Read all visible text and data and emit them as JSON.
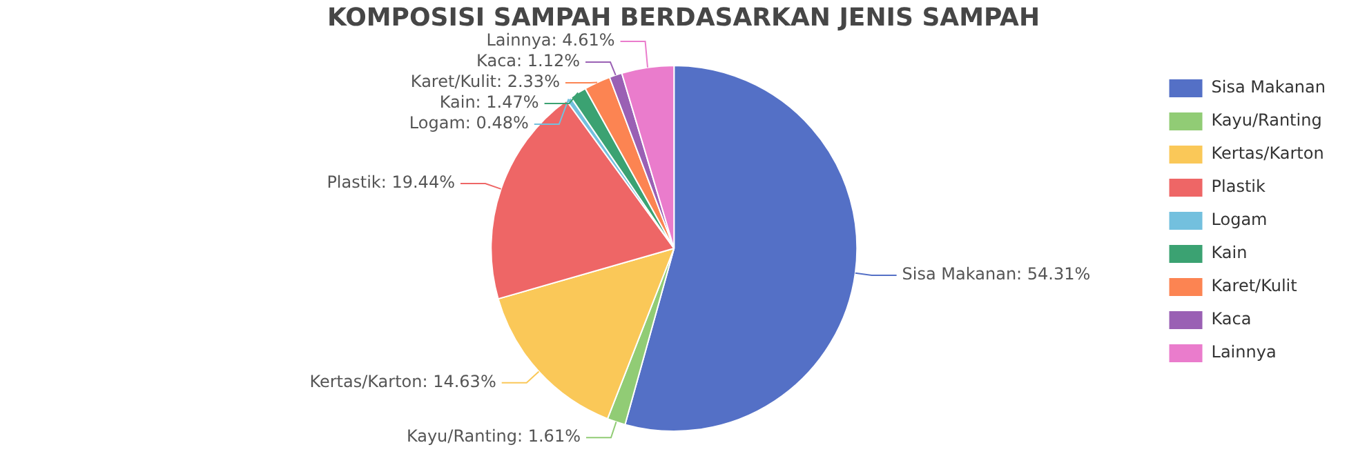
{
  "chart_data": {
    "type": "pie",
    "title": "KOMPOSISI SAMPAH BERDASARKAN JENIS SAMPAH",
    "categories": [
      "Sisa Makanan",
      "Kayu/Ranting",
      "Kertas/Karton",
      "Plastik",
      "Logam",
      "Kain",
      "Karet/Kulit",
      "Kaca",
      "Lainnya"
    ],
    "values": [
      54.31,
      1.61,
      14.63,
      19.44,
      0.48,
      1.47,
      2.33,
      1.12,
      4.61
    ],
    "value_labels": [
      "Sisa Makanan: 54.31%",
      "Kayu/Ranting: 1.61%",
      "Kertas/Karton: 14.63%",
      "Plastik: 19.44%",
      "Logam: 0.48%",
      "Kain: 1.47%",
      "Karet/Kulit: 2.33%",
      "Kaca: 1.12%",
      "Lainnya: 4.61%"
    ],
    "colors": [
      "#5470c6",
      "#91cc75",
      "#fac858",
      "#ee6666",
      "#73c0de",
      "#3ba272",
      "#fc8452",
      "#9a60b4",
      "#ea7ccc"
    ],
    "legend": "right"
  }
}
